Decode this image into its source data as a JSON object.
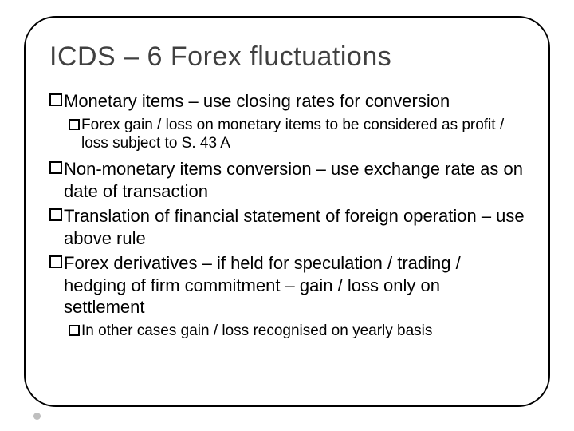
{
  "slide": {
    "title": "ICDS – 6 Forex fluctuations",
    "title_color": "#404040",
    "title_fontsize": 34,
    "background_color": "#ffffff",
    "frame_border_color": "#000000",
    "frame_border_width": 2,
    "frame_border_radius": 40,
    "footer_dot_color": "#bfbfbf",
    "bullet_box_border_color": "#000000",
    "text_color": "#000000",
    "bullets": [
      {
        "level": 0,
        "fontsize": 22,
        "text": "Monetary items – use closing rates for conversion"
      },
      {
        "level": 1,
        "fontsize": 19,
        "text": "Forex gain / loss on monetary items to be considered as profit / loss subject to S. 43 A"
      },
      {
        "level": 0,
        "fontsize": 22,
        "text": "Non-monetary items conversion – use exchange rate as on date of transaction"
      },
      {
        "level": 0,
        "fontsize": 22,
        "text": "Translation of financial statement of foreign operation – use above rule"
      },
      {
        "level": 0,
        "fontsize": 22,
        "text": "Forex derivatives – if held for speculation / trading / hedging of firm commitment – gain / loss only on settlement"
      },
      {
        "level": 1,
        "fontsize": 19,
        "text": "In other cases gain / loss recognised on yearly basis"
      }
    ]
  }
}
